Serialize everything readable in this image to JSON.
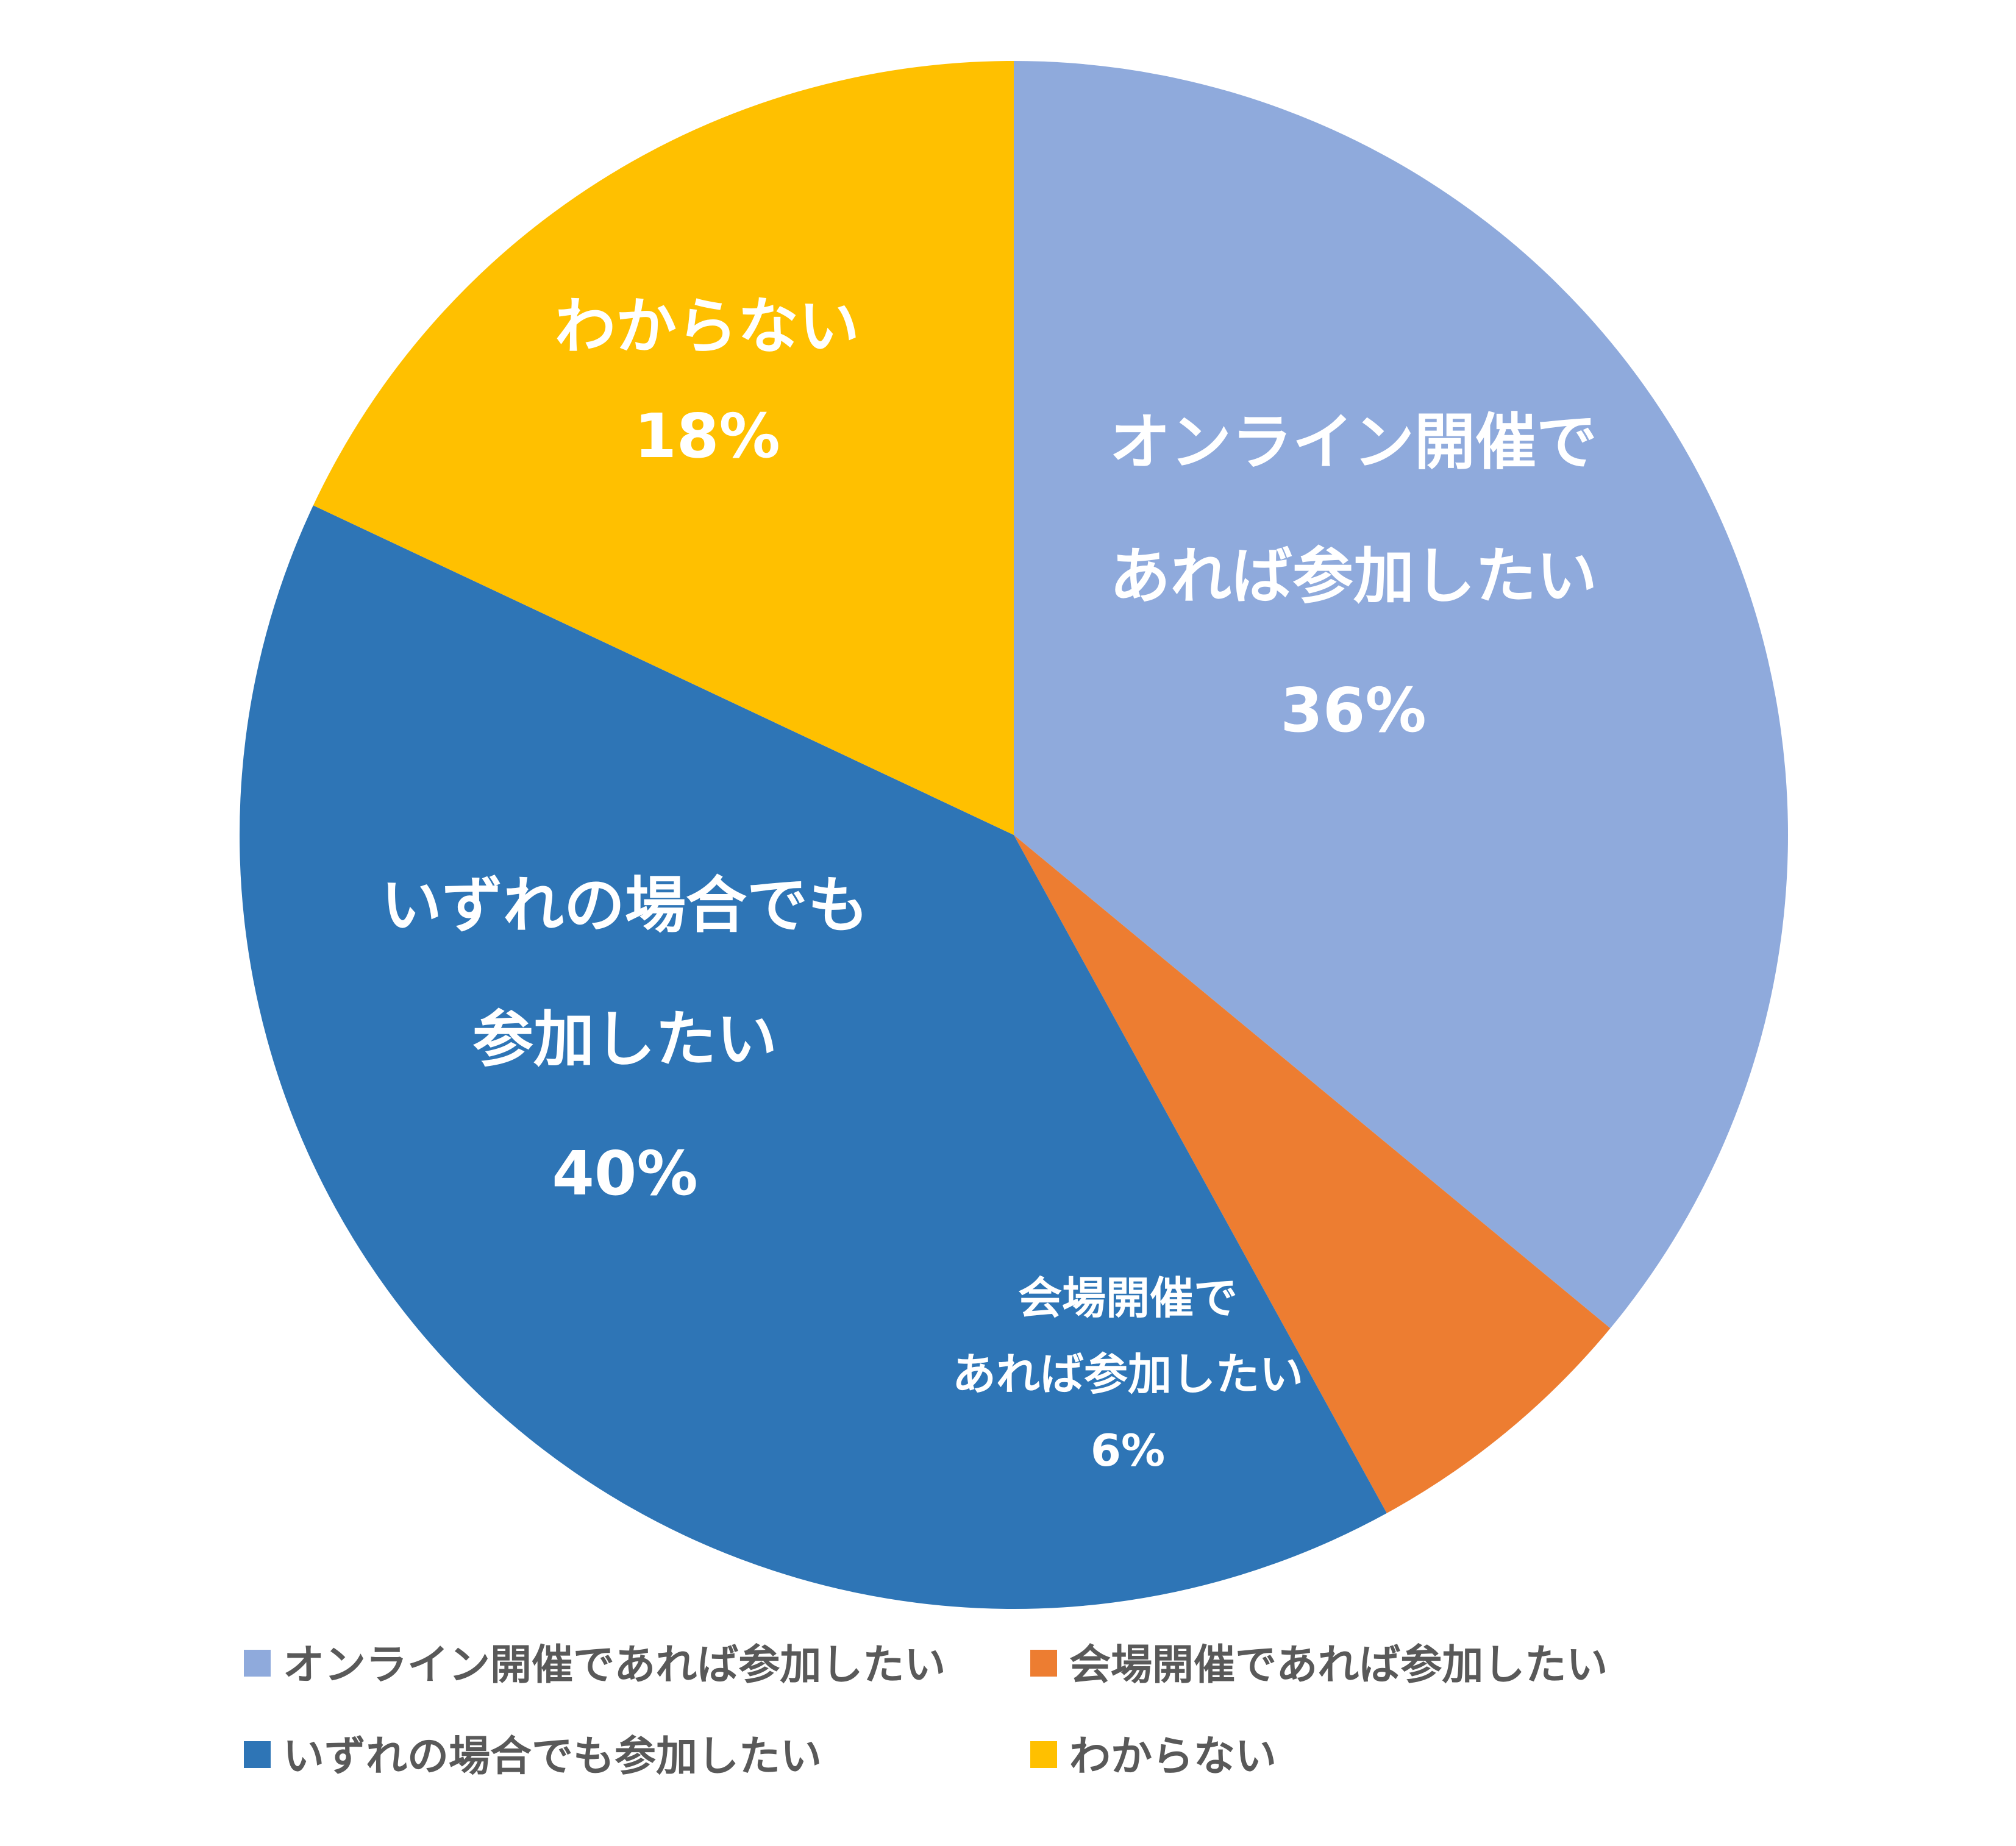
{
  "chart_data": {
    "type": "pie",
    "title": "",
    "slices": [
      {
        "name": "オンライン開催であれば参加したい",
        "value": 36,
        "color": "#8FAADC",
        "label_lines": [
          "オンライン開催で",
          "あれば参加したい"
        ],
        "percent_label": "36%"
      },
      {
        "name": "会場開催であれば参加したい",
        "value": 6,
        "color": "#ED7D31",
        "label_lines": [
          "会場開催で",
          "あれば参加したい"
        ],
        "percent_label": "6%"
      },
      {
        "name": "いずれの場合でも参加したい",
        "value": 40,
        "color": "#2E75B6",
        "label_lines": [
          "いずれの場合でも",
          "参加したい"
        ],
        "percent_label": "40%"
      },
      {
        "name": "わからない",
        "value": 18,
        "color": "#FFC000",
        "label_lines": [
          "わからない"
        ],
        "percent_label": "18%"
      }
    ],
    "start_angle": "12 o'clock",
    "direction": "clockwise",
    "legend_position": "bottom"
  }
}
